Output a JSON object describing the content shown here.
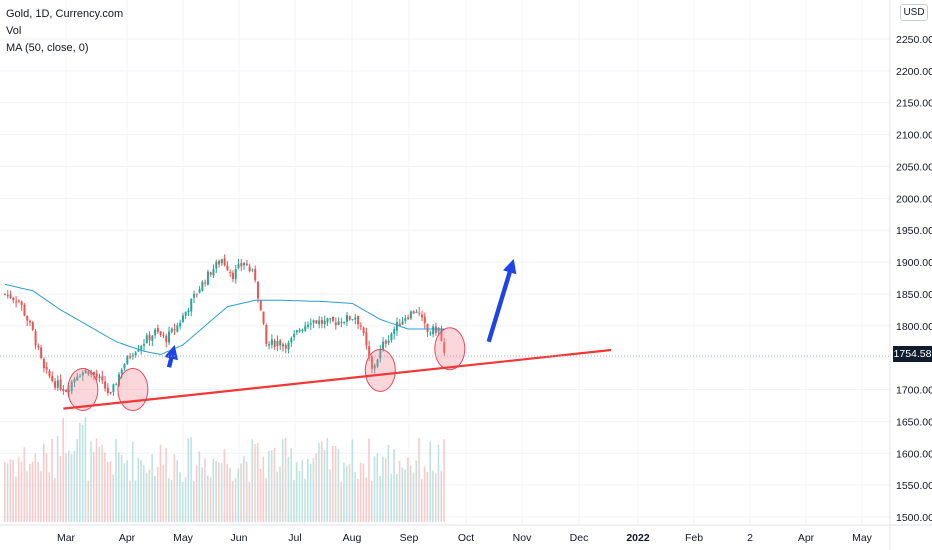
{
  "legend": {
    "symbol": "Gold, 1D, Currency.com",
    "volume": "Vol",
    "ma": "MA (50, close, 0)"
  },
  "price_axis": {
    "unit": "USD",
    "ticks": [
      "2250.00",
      "2200.00",
      "2150.00",
      "2100.00",
      "2050.00",
      "2000.00",
      "1950.00",
      "1900.00",
      "1850.00",
      "1800.00",
      "1750.00",
      "1700.00",
      "1650.00",
      "1600.00",
      "1550.00",
      "1500.00"
    ],
    "current_price": "1754.58"
  },
  "time_axis": {
    "labels": [
      "Mar",
      "Apr",
      "May",
      "Jun",
      "Jul",
      "Aug",
      "Sep",
      "Oct",
      "Nov",
      "Dec",
      "2022",
      "Feb",
      "2",
      "Apr",
      "May"
    ]
  },
  "colors": {
    "up": "#26a69a",
    "down": "#ef5350",
    "ma": "#2e9bd6",
    "trendline": "#f23737",
    "arrow": "#1e44e8",
    "highlight": "#f48a98"
  },
  "chart_data": {
    "type": "candlestick",
    "title": "Gold, 1D, Currency.com",
    "ylim": [
      1490,
      2300
    ],
    "y_scale_ref": {
      "price_a": 2250,
      "price_b": 1500
    },
    "x_unit": "trading days from 2021-02-15",
    "ohlc_anchors": [
      {
        "day": 0,
        "close": 1850
      },
      {
        "day": 5,
        "close": 1840
      },
      {
        "day": 10,
        "close": 1790
      },
      {
        "day": 14,
        "close": 1730
      },
      {
        "day": 18,
        "close": 1710
      },
      {
        "day": 22,
        "close": 1700
      },
      {
        "day": 26,
        "close": 1725
      },
      {
        "day": 30,
        "close": 1730
      },
      {
        "day": 34,
        "close": 1715
      },
      {
        "day": 38,
        "close": 1690
      },
      {
        "day": 42,
        "close": 1735
      },
      {
        "day": 46,
        "close": 1760
      },
      {
        "day": 50,
        "close": 1775
      },
      {
        "day": 54,
        "close": 1790
      },
      {
        "day": 58,
        "close": 1780
      },
      {
        "day": 62,
        "close": 1800
      },
      {
        "day": 66,
        "close": 1830
      },
      {
        "day": 70,
        "close": 1860
      },
      {
        "day": 74,
        "close": 1885
      },
      {
        "day": 78,
        "close": 1905
      },
      {
        "day": 82,
        "close": 1880
      },
      {
        "day": 86,
        "close": 1900
      },
      {
        "day": 90,
        "close": 1875
      },
      {
        "day": 94,
        "close": 1770
      },
      {
        "day": 98,
        "close": 1775
      },
      {
        "day": 102,
        "close": 1770
      },
      {
        "day": 106,
        "close": 1795
      },
      {
        "day": 110,
        "close": 1810
      },
      {
        "day": 114,
        "close": 1805
      },
      {
        "day": 118,
        "close": 1805
      },
      {
        "day": 122,
        "close": 1810
      },
      {
        "day": 126,
        "close": 1815
      },
      {
        "day": 128,
        "close": 1800
      },
      {
        "day": 132,
        "close": 1730
      },
      {
        "day": 136,
        "close": 1770
      },
      {
        "day": 140,
        "close": 1795
      },
      {
        "day": 144,
        "close": 1815
      },
      {
        "day": 148,
        "close": 1825
      },
      {
        "day": 152,
        "close": 1790
      },
      {
        "day": 156,
        "close": 1795
      },
      {
        "day": 158,
        "close": 1755
      }
    ],
    "ma_anchors": [
      {
        "day": 0,
        "value": 1865
      },
      {
        "day": 10,
        "value": 1855
      },
      {
        "day": 20,
        "value": 1825
      },
      {
        "day": 30,
        "value": 1800
      },
      {
        "day": 40,
        "value": 1775
      },
      {
        "day": 50,
        "value": 1760
      },
      {
        "day": 56,
        "value": 1755
      },
      {
        "day": 64,
        "value": 1770
      },
      {
        "day": 72,
        "value": 1800
      },
      {
        "day": 80,
        "value": 1830
      },
      {
        "day": 90,
        "value": 1840
      },
      {
        "day": 100,
        "value": 1840
      },
      {
        "day": 115,
        "value": 1838
      },
      {
        "day": 125,
        "value": 1835
      },
      {
        "day": 135,
        "value": 1810
      },
      {
        "day": 145,
        "value": 1795
      },
      {
        "day": 158,
        "value": 1795
      }
    ],
    "trendline": {
      "start": {
        "day": 21,
        "price": 1670
      },
      "end": {
        "day": 218,
        "price": 1762
      }
    },
    "highlights": [
      {
        "day": 28,
        "price": 1700
      },
      {
        "day": 46,
        "price": 1700
      },
      {
        "day": 135,
        "price": 1730
      },
      {
        "day": 160,
        "price": 1764
      }
    ],
    "arrows": [
      {
        "from": {
          "day": 59,
          "price": 1735
        },
        "to": {
          "day": 61,
          "price": 1770
        }
      },
      {
        "from": {
          "day": 174,
          "price": 1775
        },
        "to": {
          "day": 183,
          "price": 1905
        }
      }
    ],
    "volume": {
      "max_relative": 1.0
    }
  }
}
